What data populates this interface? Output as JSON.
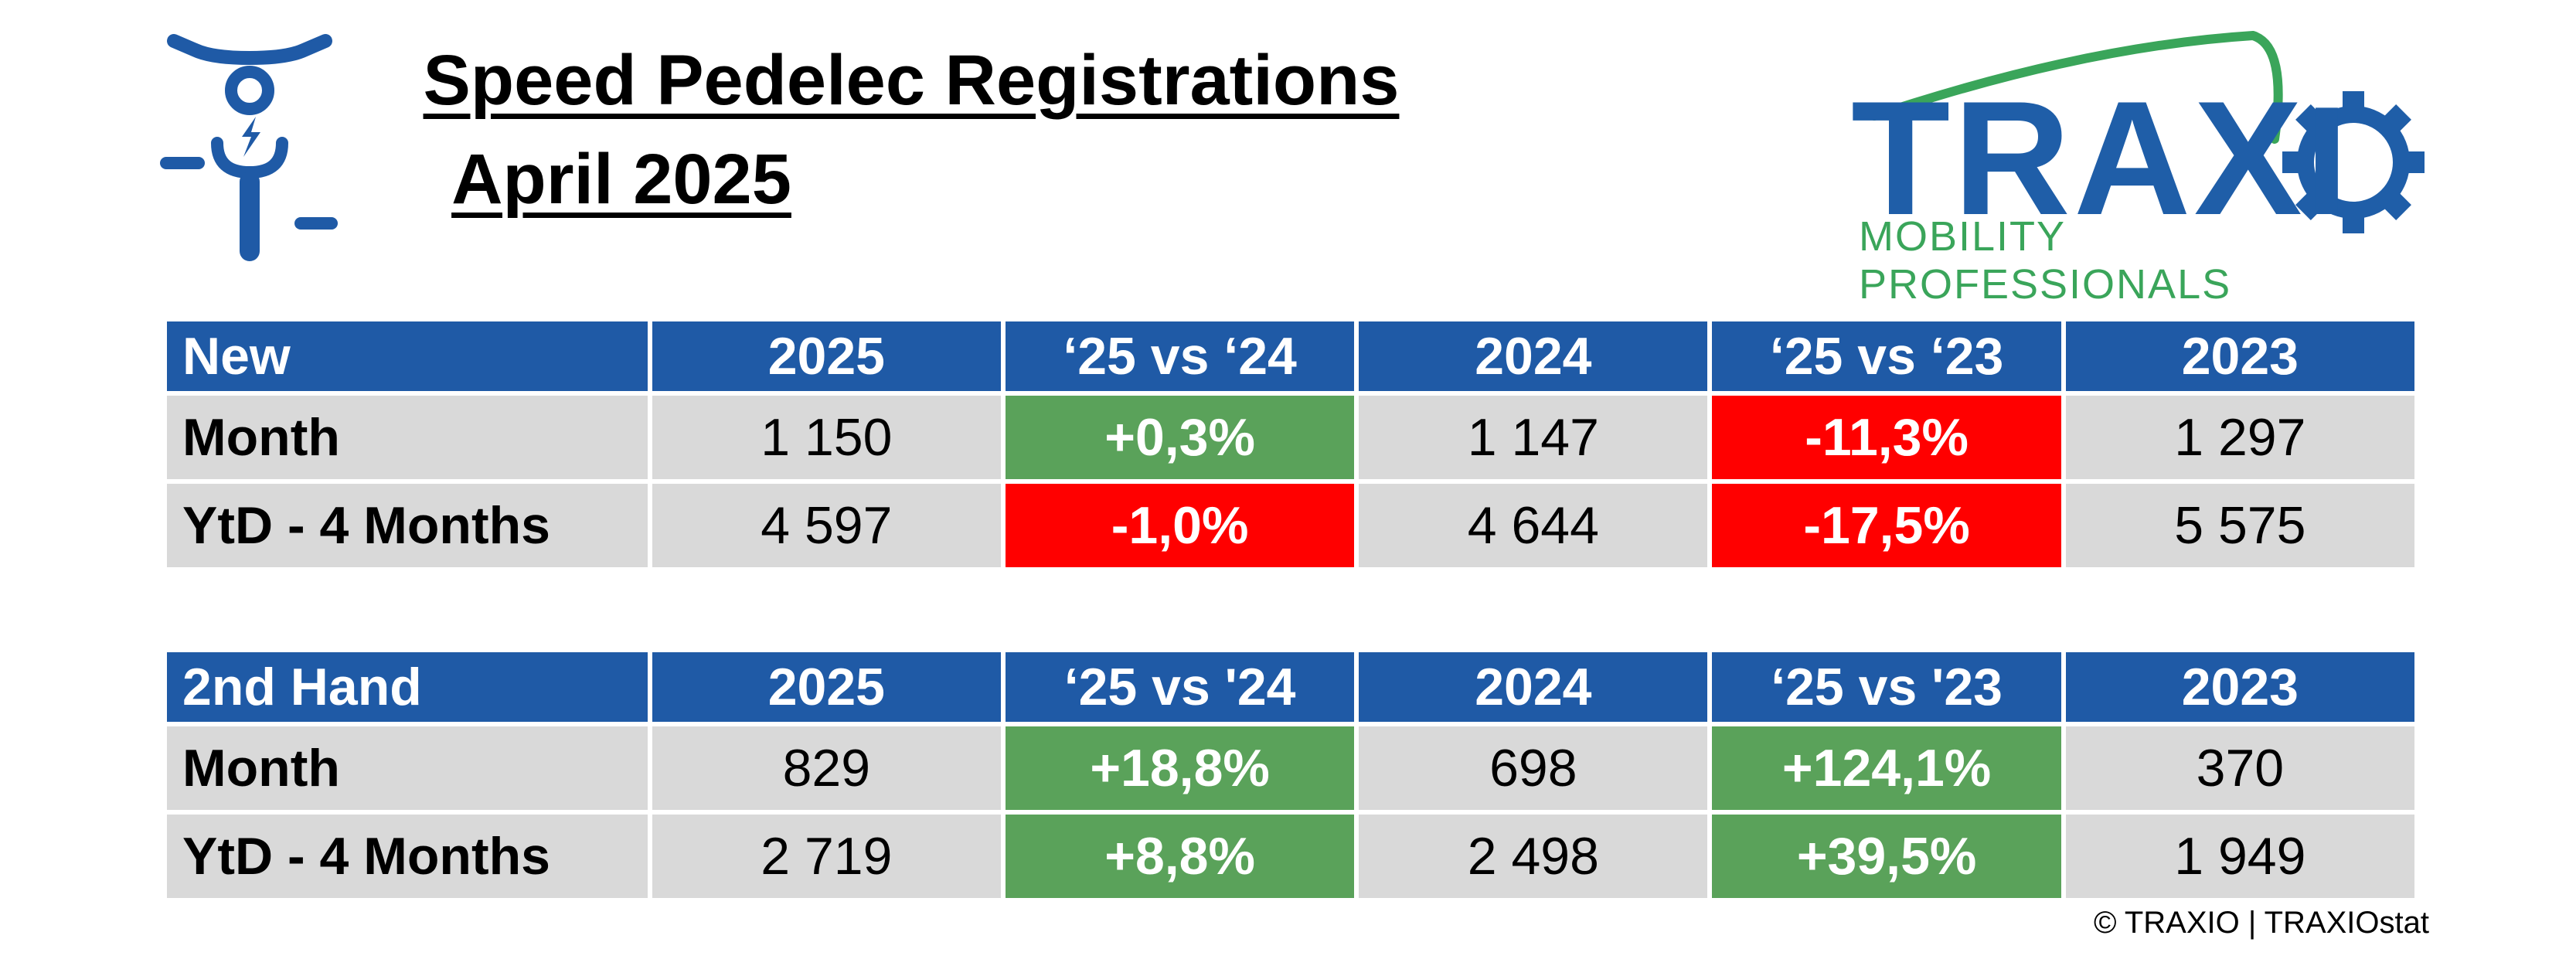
{
  "title": {
    "line1": "Speed Pedelec Registrations",
    "line2": "April 2025"
  },
  "icons": {
    "rider": "speed-pedelec-rider-icon",
    "gear": "gear-icon"
  },
  "logo": {
    "word": "TRAX",
    "word_end": "I",
    "tagline": "MOBILITY PROFESSIONALS"
  },
  "colors": {
    "header_blue": "#1f5aa6",
    "cell_gray": "#d9d9d9",
    "positive_green": "#5aa25a",
    "negative_red": "#ff0000",
    "logo_blue": "#1f5ea8",
    "logo_green": "#3aa55a"
  },
  "tables": [
    {
      "headers": [
        "New",
        "2025",
        "‘25 vs ‘24",
        "2024",
        "‘25 vs ‘23",
        "2023"
      ],
      "rows": [
        {
          "label": "Month",
          "y2025": "1 150",
          "vs24": "+0,3%",
          "y2024": "1 147",
          "vs23": "-11,3%",
          "y2023": "1 297"
        },
        {
          "label": "YtD - 4 Months",
          "y2025": "4 597",
          "vs24": "-1,0%",
          "y2024": "4 644",
          "vs23": "-17,5%",
          "y2023": "5 575"
        }
      ]
    },
    {
      "headers": [
        "2nd Hand",
        "2025",
        "‘25 vs '24",
        "2024",
        "‘25 vs '23",
        "2023"
      ],
      "rows": [
        {
          "label": "Month",
          "y2025": "829",
          "vs24": "+18,8%",
          "y2024": "698",
          "vs23": "+124,1%",
          "y2023": "370"
        },
        {
          "label": "YtD - 4 Months",
          "y2025": "2 719",
          "vs24": "+8,8%",
          "y2024": "2 498",
          "vs23": "+39,5%",
          "y2023": "1 949"
        }
      ]
    }
  ],
  "footer": {
    "copyright": "© TRAXIO | TRAXIOstat"
  }
}
